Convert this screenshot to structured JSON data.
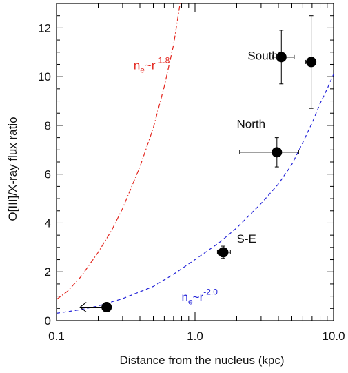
{
  "chart_data": {
    "type": "scatter",
    "title": "",
    "xlabel": "Distance from the nucleus (kpc)",
    "ylabel": "O[III]/X-ray flux ratio",
    "xscale": "log",
    "xlim": [
      0.1,
      10.0
    ],
    "ylim": [
      0,
      13
    ],
    "xticks": [
      {
        "value": 0.1,
        "label": "0.1"
      },
      {
        "value": 1.0,
        "label": "1.0"
      },
      {
        "value": 10.0,
        "label": "10.0"
      }
    ],
    "yticks": [
      {
        "value": 0,
        "label": "0"
      },
      {
        "value": 2,
        "label": "2"
      },
      {
        "value": 4,
        "label": "4"
      },
      {
        "value": 6,
        "label": "6"
      },
      {
        "value": 8,
        "label": "8"
      },
      {
        "value": 10,
        "label": "10"
      },
      {
        "value": 12,
        "label": "12"
      }
    ],
    "grid": false,
    "points": [
      {
        "x": 0.23,
        "y": 0.55,
        "upper_limit_x": true,
        "xerr": [
          0.08,
          0.0
        ],
        "yerr": [
          0.0,
          0.0
        ]
      },
      {
        "x": 1.6,
        "y": 2.8,
        "xerr": [
          0.15,
          0.2
        ],
        "yerr": [
          0.25,
          0.25
        ],
        "label": "S-E"
      },
      {
        "x": 3.9,
        "y": 6.9,
        "xerr": [
          1.8,
          1.7
        ],
        "yerr": [
          0.6,
          0.6
        ],
        "label": "North"
      },
      {
        "x": 4.2,
        "y": 10.8,
        "xerr": [
          0.6,
          1.0
        ],
        "yerr": [
          1.1,
          1.1
        ],
        "label": "South"
      },
      {
        "x": 6.9,
        "y": 10.6,
        "xerr": [
          0.6,
          0.3
        ],
        "yerr": [
          1.9,
          1.9
        ]
      }
    ],
    "curves": [
      {
        "name_base": "n",
        "name_sub": "e",
        "name_mid": "~r",
        "name_sup": "-1.8",
        "color": "#e3261e",
        "style": "dash-dot",
        "x": [
          0.1,
          0.12,
          0.15,
          0.2,
          0.25,
          0.3,
          0.4,
          0.5,
          0.6,
          0.7,
          0.78
        ],
        "y": [
          0.87,
          1.2,
          1.8,
          2.8,
          3.7,
          4.6,
          6.3,
          7.9,
          9.6,
          11.3,
          13.0
        ]
      },
      {
        "name_base": "n",
        "name_sub": "e",
        "name_mid": "~r",
        "name_sup": "-2.0",
        "color": "#2323d8",
        "style": "dashed",
        "x": [
          0.1,
          0.15,
          0.2,
          0.3,
          0.5,
          0.7,
          1.0,
          1.5,
          2.0,
          3.0,
          4.0,
          5.0,
          6.0,
          7.0,
          8.0,
          9.0,
          10.0
        ],
        "y": [
          0.3,
          0.45,
          0.6,
          0.9,
          1.4,
          1.9,
          2.5,
          3.2,
          3.8,
          4.8,
          5.6,
          6.4,
          7.3,
          8.1,
          8.9,
          9.5,
          10.1
        ]
      }
    ],
    "annotations": [
      {
        "text": "South",
        "x": 2.4,
        "y": 10.7
      },
      {
        "text": "North",
        "x": 2.0,
        "y": 7.9
      },
      {
        "text": "S-E",
        "x": 2.0,
        "y": 3.2
      }
    ],
    "curve_labels": [
      {
        "curve": 0,
        "x": 0.36,
        "y": 10.3
      },
      {
        "curve": 1,
        "x": 0.8,
        "y": 0.8
      }
    ]
  }
}
